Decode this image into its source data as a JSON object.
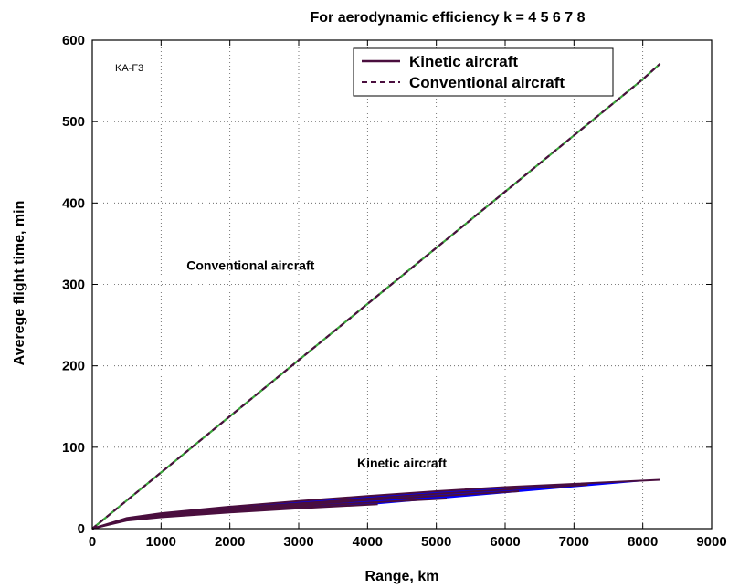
{
  "chart_data": {
    "type": "line",
    "title": "For aerodynamic efficiency k = 4  5  6  7  8",
    "xlabel": "Range, km",
    "ylabel": "Averege flight time, min",
    "xlim": [
      0,
      9000
    ],
    "ylim": [
      0,
      600
    ],
    "x_ticks": [
      0,
      1000,
      2000,
      3000,
      4000,
      5000,
      6000,
      7000,
      8000,
      9000
    ],
    "y_ticks": [
      0,
      100,
      200,
      300,
      400,
      500,
      600
    ],
    "grid": true,
    "legend_position": "top-right",
    "legend": [
      "Kinetic aircraft",
      "Conventional aircraft"
    ],
    "inset_label": "KA-F3",
    "annotations": [
      {
        "text": "Conventional aircraft",
        "x": 2300,
        "y": 318
      },
      {
        "text": "Kinetic aircraft",
        "x": 4500,
        "y": 75
      }
    ],
    "series": [
      {
        "name": "Conventional aircraft",
        "style": "dashed",
        "color": "#4a0e3e",
        "accent_color": "#3aa63a",
        "x": [
          0,
          1000,
          2000,
          3000,
          4000,
          5000,
          6000,
          7000,
          8000,
          8250
        ],
        "y": [
          0,
          69,
          138,
          207,
          276,
          345,
          414,
          483,
          552,
          571
        ]
      },
      {
        "name": "Kinetic aircraft",
        "style": "solid",
        "color": "#4a0e3e",
        "envelope_color": "#0000ff",
        "curves": [
          {
            "k": 4,
            "x": [
              0,
              500,
              1000,
              2000,
              3000,
              4150
            ],
            "y": [
              0,
              10,
              14,
              20,
              25,
              30
            ]
          },
          {
            "k": 5,
            "x": [
              0,
              500,
              1000,
              2000,
              3000,
              4000,
              5150
            ],
            "y": [
              0,
              11,
              15,
              22,
              27,
              32,
              37
            ]
          },
          {
            "k": 6,
            "x": [
              0,
              500,
              1000,
              2000,
              3000,
              4000,
              5000,
              6200
            ],
            "y": [
              0,
              11,
              16,
              23,
              29,
              35,
              40,
              46
            ]
          },
          {
            "k": 7,
            "x": [
              0,
              500,
              1000,
              2000,
              3000,
              4000,
              5000,
              6000,
              7200
            ],
            "y": [
              0,
              12,
              17,
              25,
              31,
              37,
              43,
              48,
              54
            ]
          },
          {
            "k": 8,
            "x": [
              0,
              500,
              1000,
              2000,
              3000,
              4000,
              5000,
              6000,
              7000,
              8250
            ],
            "y": [
              0,
              13,
              19,
              27,
              34,
              40,
              46,
              51,
              55,
              60
            ]
          }
        ]
      }
    ]
  }
}
